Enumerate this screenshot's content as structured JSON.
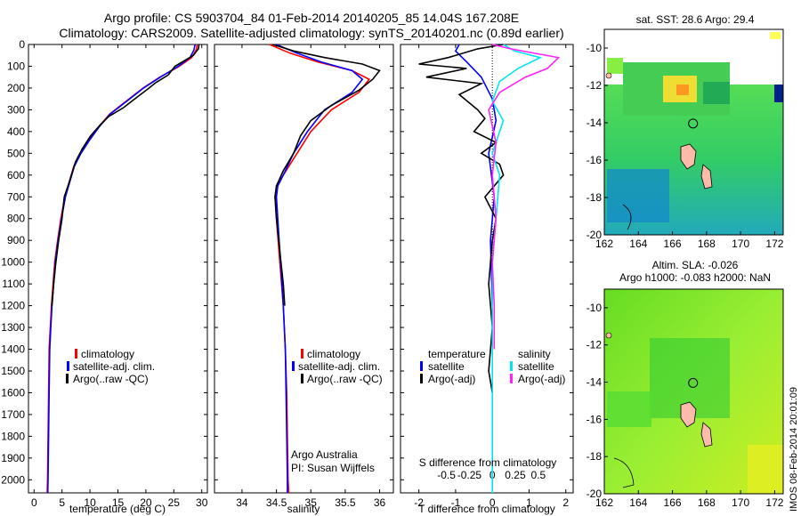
{
  "title_line1": "Argo profile: CS 5903704_84 01-Feb-2014 20140205_85 14.04S 167.208E",
  "title_line2": "Climatology: CARS2009. Satellite-adjusted climatology: synTS_20140201.nc (0.89d earlier)",
  "watermark": "IMOS 08-Feb-2014 20:01:09",
  "colors": {
    "climatology": "#ff0000",
    "satellite": "#0000ff",
    "argo": "#000000",
    "cyan": "#00e5ee",
    "magenta": "#ff22ff"
  },
  "chart_data": [
    {
      "type": "line",
      "name": "temperature",
      "xlabel": "temperature (deg C)",
      "xlim": [
        -1,
        31
      ],
      "ylim": [
        0,
        2060
      ],
      "xticks": [
        0,
        5,
        10,
        15,
        20,
        25,
        30
      ],
      "xtick_labels": [
        "0",
        "5",
        "10",
        "15",
        "20",
        "25",
        "30"
      ],
      "yticks": [
        0,
        100,
        200,
        300,
        400,
        500,
        600,
        700,
        800,
        900,
        1000,
        1100,
        1200,
        1300,
        1400,
        1500,
        1600,
        1700,
        1800,
        1900,
        2000
      ],
      "ytick_labels": [
        "0",
        "100",
        "200",
        "300",
        "400",
        "500",
        "600",
        "700",
        "800",
        "900",
        "1000",
        "1100",
        "1200",
        "1300",
        "1400",
        "1500",
        "1600",
        "1700",
        "1800",
        "1900",
        "2000"
      ],
      "legend": [
        "climatology",
        "satellite-adj. clim.",
        "Argo(..raw -QC)"
      ],
      "series": [
        {
          "name": "climatology",
          "color": "#ff0000",
          "x": [
            29.2,
            29.0,
            28.2,
            26.0,
            22.5,
            19.5,
            16.5,
            13.5,
            11.5,
            9.8,
            8.3,
            7.1,
            5.5,
            4.8,
            4.2,
            3.7,
            3.4,
            3.1,
            2.9,
            2.7,
            2.6,
            2.5,
            2.4,
            2.35
          ],
          "y": [
            0,
            25,
            60,
            100,
            150,
            200,
            260,
            320,
            380,
            440,
            500,
            560,
            700,
            800,
            900,
            1000,
            1100,
            1200,
            1300,
            1400,
            1600,
            1800,
            2000,
            2060
          ]
        },
        {
          "name": "satellite",
          "color": "#0000ff",
          "x": [
            28.8,
            28.6,
            27.9,
            25.8,
            22.6,
            19.6,
            16.6,
            13.6,
            11.6,
            9.9,
            8.4,
            7.2,
            5.6,
            4.9,
            4.3,
            3.8,
            3.5,
            3.2,
            3.0,
            2.8,
            2.7,
            2.6,
            2.5,
            2.45
          ],
          "y": [
            0,
            25,
            60,
            100,
            150,
            200,
            260,
            320,
            380,
            440,
            500,
            560,
            700,
            800,
            900,
            1000,
            1100,
            1200,
            1300,
            1400,
            1600,
            1800,
            2000,
            2060
          ]
        },
        {
          "name": "argo",
          "color": "#000000",
          "x": [
            29.5,
            29.4,
            28.5,
            25.2,
            24.0,
            21.8,
            20.3,
            18.0,
            16.0,
            13.4,
            11.8,
            10.1,
            8.6,
            7.4,
            6.2,
            5.4,
            5.0,
            4.4,
            3.9,
            3.5,
            3.2
          ],
          "y": [
            0,
            20,
            50,
            100,
            140,
            175,
            205,
            250,
            290,
            330,
            370,
            420,
            480,
            540,
            640,
            700,
            800,
            900,
            1000,
            1100,
            1200
          ]
        }
      ]
    },
    {
      "type": "line",
      "name": "salinity",
      "xlabel": "salinity",
      "xlim": [
        33.6,
        36.2
      ],
      "ylim": [
        0,
        2060
      ],
      "xticks": [
        34,
        34.5,
        35,
        35.5,
        36
      ],
      "xtick_labels": [
        "34",
        "34.5",
        "35",
        "35.5",
        "36"
      ],
      "legend": [
        "climatology",
        "satellite-adj. clim.",
        "Argo(..raw -QC)"
      ],
      "annotation": [
        "Argo Australia",
        "PI: Susan Wijffels"
      ],
      "series": [
        {
          "name": "climatology",
          "color": "#ff0000",
          "x": [
            34.4,
            34.7,
            35.1,
            35.6,
            35.85,
            35.7,
            35.3,
            35.0,
            34.8,
            34.6,
            34.5,
            34.48,
            34.5,
            34.55,
            34.6,
            34.63,
            34.65,
            34.66,
            34.67,
            34.68
          ],
          "y": [
            0,
            40,
            80,
            120,
            160,
            220,
            300,
            400,
            500,
            600,
            650,
            700,
            800,
            1000,
            1200,
            1400,
            1600,
            1800,
            2000,
            2060
          ]
        },
        {
          "name": "satellite",
          "color": "#0000ff",
          "x": [
            34.5,
            34.8,
            35.15,
            35.6,
            35.75,
            35.6,
            35.2,
            34.95,
            34.75,
            34.6,
            34.52,
            34.5,
            34.52,
            34.56,
            34.6,
            34.63,
            34.64,
            34.65,
            34.66,
            34.66
          ],
          "y": [
            0,
            40,
            80,
            120,
            160,
            220,
            300,
            400,
            500,
            600,
            650,
            700,
            800,
            1000,
            1200,
            1400,
            1600,
            1800,
            2000,
            2060
          ]
        },
        {
          "name": "argo",
          "color": "#000000",
          "x": [
            34.45,
            34.75,
            35.2,
            35.75,
            36.0,
            35.9,
            35.7,
            35.3,
            35.0,
            34.85,
            34.75,
            34.6,
            34.5,
            34.48,
            34.5,
            34.55,
            34.6,
            34.62
          ],
          "y": [
            0,
            30,
            60,
            90,
            120,
            160,
            210,
            280,
            350,
            420,
            500,
            580,
            650,
            700,
            800,
            950,
            1100,
            1200
          ]
        }
      ]
    },
    {
      "type": "line",
      "name": "difference",
      "xlabel": "T difference from climatology",
      "xlabel_top": "S difference from climatology",
      "xlim": [
        -2.5,
        2.2
      ],
      "ylim": [
        0,
        2060
      ],
      "xticks": [
        -2,
        -1,
        0,
        1,
        2
      ],
      "xtick_labels": [
        "-2",
        "-1",
        "0",
        "1",
        "2"
      ],
      "sticks": [
        -1.25,
        -0.625,
        0,
        0.625,
        1.25
      ],
      "stick_labels": [
        "-0.5",
        "-0.25",
        "0",
        "0.25",
        "0.5"
      ],
      "legend_left": [
        "temperature",
        "satellite",
        "Argo(-adj)"
      ],
      "legend_right": [
        "salinity",
        "satellite",
        "Argo(-adj)"
      ],
      "series": [
        {
          "name": "T satellite",
          "color": "#0000ff",
          "x": [
            -0.9,
            -1.0,
            -0.7,
            -0.3,
            0.0,
            0.1,
            -0.1,
            0.05,
            -0.05,
            0.0
          ],
          "y": [
            0,
            30,
            80,
            150,
            250,
            350,
            500,
            700,
            900,
            1200
          ]
        },
        {
          "name": "T argo",
          "color": "#000000",
          "x": [
            0.3,
            -0.4,
            -1.2,
            -2.0,
            -0.7,
            -1.8,
            -0.3,
            -0.9,
            -0.4,
            -0.2,
            -0.5,
            0.1,
            -0.3,
            0.2,
            0.3,
            -0.2,
            0.1,
            0.0,
            -0.1,
            0.0,
            -0.1,
            0.0
          ],
          "y": [
            0,
            20,
            60,
            90,
            110,
            150,
            180,
            230,
            300,
            340,
            400,
            450,
            500,
            550,
            600,
            700,
            800,
            900,
            1100,
            1300,
            1500,
            1600
          ]
        },
        {
          "name": "S satellite",
          "color": "#00e5ee",
          "x": [
            0.3,
            0.6,
            1.3,
            0.7,
            0.2,
            0.0,
            0.3,
            0.0,
            0.2,
            0.1,
            0.0,
            0.0,
            0.0,
            0.0
          ],
          "y": [
            0,
            30,
            60,
            110,
            170,
            260,
            350,
            500,
            600,
            800,
            1000,
            1400,
            1800,
            2060
          ]
        },
        {
          "name": "S argo",
          "color": "#ff22ff",
          "x": [
            0.0,
            0.5,
            1.8,
            1.5,
            0.9,
            0.2,
            -0.1,
            0.1,
            0.0,
            0.1,
            0.0,
            0.05,
            0.05
          ],
          "y": [
            0,
            20,
            60,
            110,
            150,
            220,
            300,
            450,
            600,
            800,
            1000,
            1200,
            1400
          ]
        }
      ]
    },
    {
      "type": "heatmap",
      "name": "sst_map",
      "title": "sat. SST: 28.6  Argo: 29.4",
      "xlim": [
        162,
        172.5
      ],
      "ylim": [
        -20,
        -9
      ],
      "xticks": [
        162,
        164,
        166,
        168,
        170,
        172
      ],
      "yticks": [
        -10,
        -12,
        -14,
        -16,
        -18,
        -20
      ],
      "argo_position": [
        167.208,
        -14.04
      ]
    },
    {
      "type": "heatmap",
      "name": "sla_map",
      "title_line1": "Altim. SLA: -0.026",
      "title_line2": "Argo h1000: -0.083 h2000: NaN",
      "xlim": [
        162,
        172.5
      ],
      "ylim": [
        -20,
        -9
      ],
      "xticks": [
        162,
        164,
        166,
        168,
        170,
        172
      ],
      "yticks": [
        -10,
        -12,
        -14,
        -16,
        -18,
        -20
      ],
      "argo_position": [
        167.208,
        -14.04
      ]
    }
  ]
}
